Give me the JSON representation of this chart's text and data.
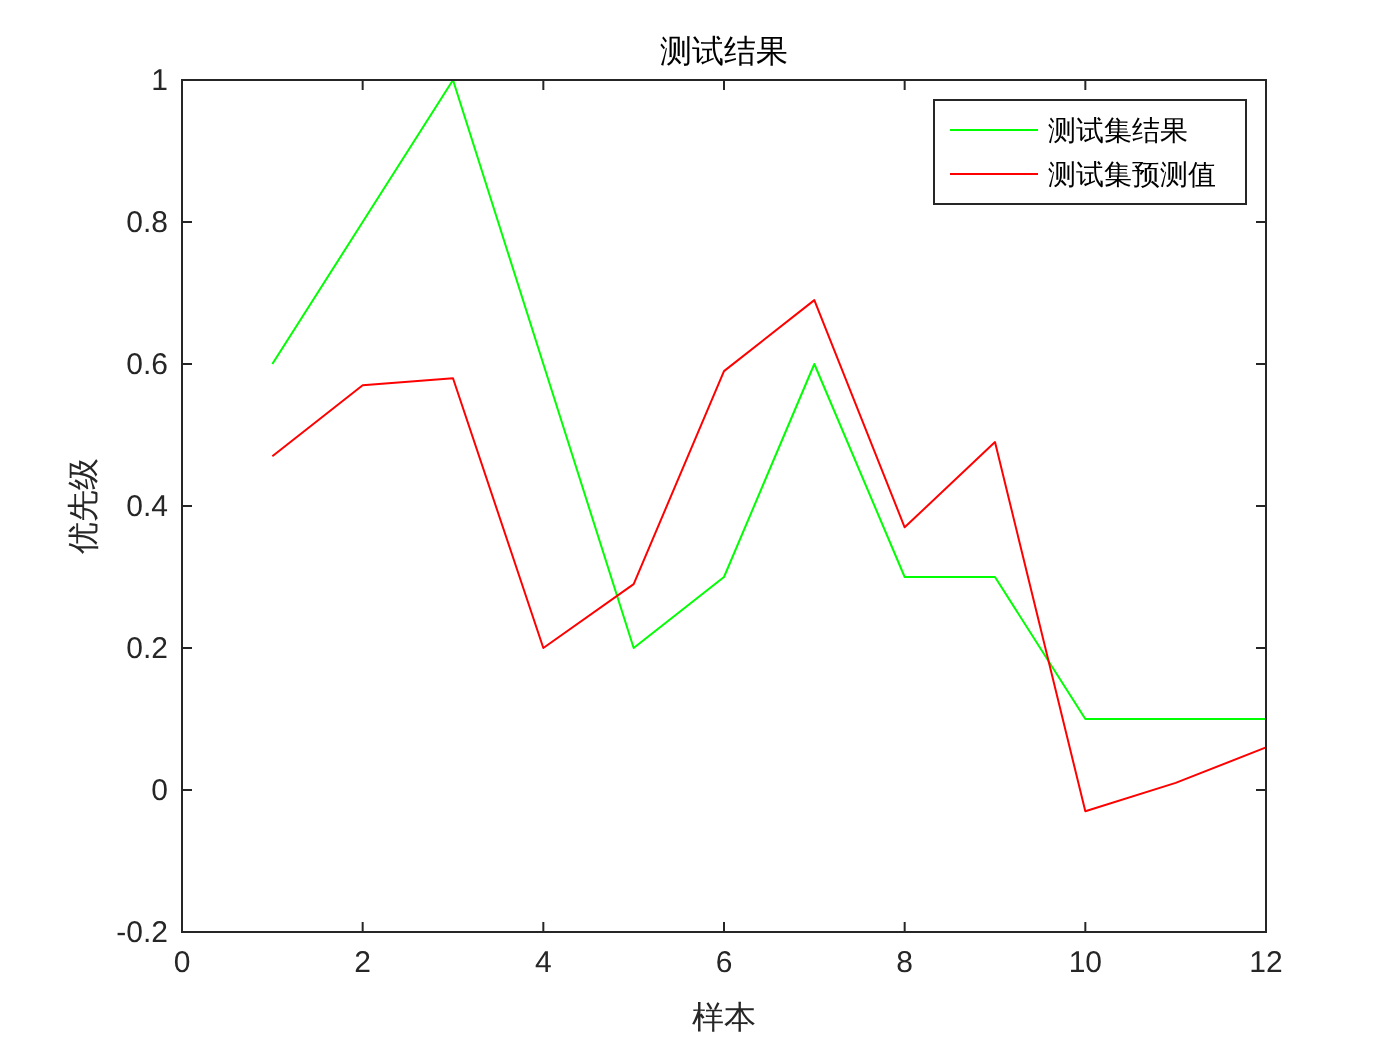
{
  "chart_data": {
    "type": "line",
    "title": "测试结果",
    "xlabel": "样本",
    "ylabel": "优先级",
    "x": [
      1,
      2,
      3,
      4,
      5,
      6,
      7,
      8,
      9,
      10,
      11,
      12
    ],
    "series": [
      {
        "name": "测试集结果",
        "color": "#00ff00",
        "values": [
          0.6,
          0.8,
          1.0,
          0.6,
          0.2,
          0.3,
          0.6,
          0.3,
          0.3,
          0.1,
          0.1,
          0.1
        ]
      },
      {
        "name": "测试集预测值",
        "color": "#ff0000",
        "values": [
          0.47,
          0.57,
          0.58,
          0.2,
          0.29,
          0.59,
          0.69,
          0.37,
          0.49,
          -0.03,
          0.01,
          0.06
        ]
      }
    ],
    "xlim": [
      0,
      12
    ],
    "xticks": [
      0,
      2,
      4,
      6,
      8,
      10,
      12
    ],
    "ylim": [
      -0.2,
      1
    ],
    "yticks": [
      -0.2,
      0,
      0.2,
      0.4,
      0.6,
      0.8,
      1
    ],
    "legend": "top right"
  }
}
